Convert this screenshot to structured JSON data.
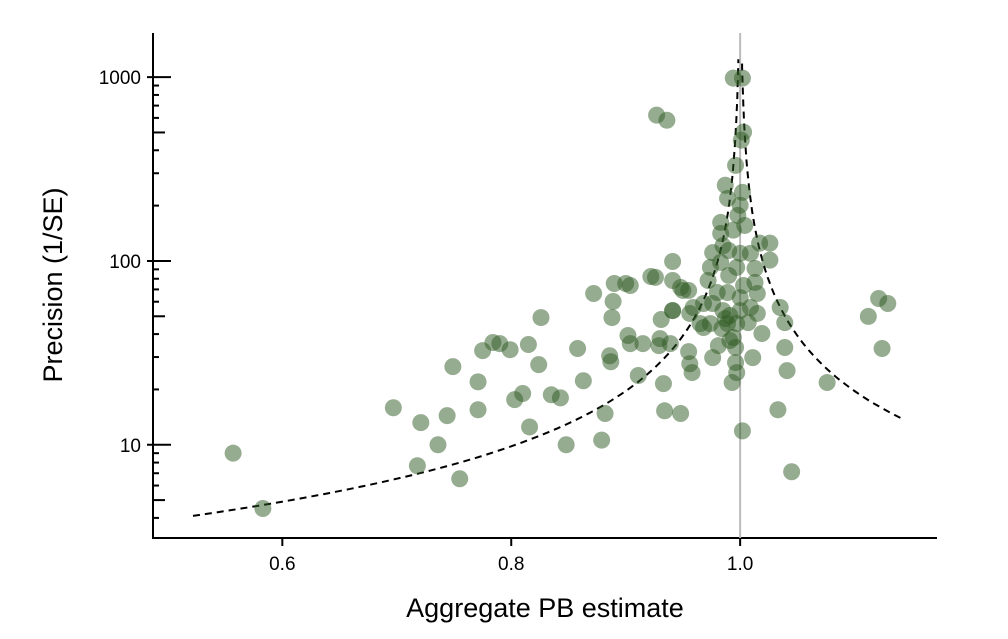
{
  "chart_data": {
    "type": "scatter",
    "title": "",
    "xlabel": "Aggregate PB estimate",
    "ylabel": "Precision (1/SE)",
    "xlim": [
      0.487,
      1.172
    ],
    "ylim": [
      3.11,
      1738
    ],
    "yscale": "log",
    "grid": false,
    "x_ticks": [
      {
        "value": 0.6,
        "label": "0.6"
      },
      {
        "value": 0.8,
        "label": "0.8"
      },
      {
        "value": 1.0,
        "label": "1.0"
      }
    ],
    "y_ticks": [
      {
        "value": 10,
        "label": "10"
      },
      {
        "value": 100,
        "label": "100"
      },
      {
        "value": 1000,
        "label": "1000"
      }
    ],
    "reference_line_x": 1.0,
    "funnel": {
      "center": 1.0,
      "z": 1.96,
      "left_precision_range": [
        4.1,
        1250
      ],
      "right_precision_range": [
        14,
        1250
      ],
      "style": "dashed"
    },
    "colors": {
      "points": "#2d5a22",
      "reference": "#bbbbbb",
      "funnel": "#000000"
    },
    "points": [
      [
        0.557,
        9.0
      ],
      [
        0.583,
        4.5
      ],
      [
        0.697,
        15.9
      ],
      [
        0.721,
        13.2
      ],
      [
        0.736,
        10.0
      ],
      [
        0.744,
        14.4
      ],
      [
        0.718,
        7.69
      ],
      [
        0.755,
        6.53
      ],
      [
        0.749,
        26.6
      ],
      [
        0.771,
        22.0
      ],
      [
        0.771,
        15.5
      ],
      [
        0.775,
        32.5
      ],
      [
        0.784,
        36.0
      ],
      [
        0.79,
        35.5
      ],
      [
        0.799,
        32.9
      ],
      [
        0.803,
        17.6
      ],
      [
        0.81,
        19.0
      ],
      [
        0.815,
        35.1
      ],
      [
        0.816,
        12.5
      ],
      [
        0.824,
        27.3
      ],
      [
        0.826,
        49.2
      ],
      [
        0.835,
        18.7
      ],
      [
        0.843,
        18.0
      ],
      [
        0.848,
        10.0
      ],
      [
        0.858,
        33.4
      ],
      [
        0.863,
        22.3
      ],
      [
        0.872,
        66.5
      ],
      [
        0.879,
        10.6
      ],
      [
        0.882,
        14.8
      ],
      [
        0.886,
        30.5
      ],
      [
        0.887,
        28.3
      ],
      [
        0.888,
        49.2
      ],
      [
        0.889,
        60.2
      ],
      [
        0.89,
        75.4
      ],
      [
        0.9,
        75.4
      ],
      [
        0.904,
        73.5
      ],
      [
        0.902,
        39.3
      ],
      [
        0.904,
        35.5
      ],
      [
        0.911,
        23.8
      ],
      [
        0.915,
        35.5
      ],
      [
        0.922,
        82.3
      ],
      [
        0.926,
        81.4
      ],
      [
        0.929,
        34.6
      ],
      [
        0.93,
        37.8
      ],
      [
        0.931,
        48.0
      ],
      [
        0.933,
        21.5
      ],
      [
        0.934,
        15.3
      ],
      [
        0.941,
        99.3
      ],
      [
        0.941,
        53.7
      ],
      [
        0.948,
        14.8
      ],
      [
        0.95,
        69.1
      ],
      [
        0.955,
        32.1
      ],
      [
        0.927,
        621
      ],
      [
        0.936,
        583
      ],
      [
        0.994,
        988
      ],
      [
        1.002,
        988
      ],
      [
        1.003,
        502
      ],
      [
        1.001,
        454
      ],
      [
        0.996,
        331
      ],
      [
        0.989,
        219
      ],
      [
        1.0,
        201
      ],
      [
        1.002,
        236
      ],
      [
        0.983,
        162
      ],
      [
        0.983,
        141
      ],
      [
        0.976,
        111
      ],
      [
        0.985,
        121
      ],
      [
        0.99,
        114
      ],
      [
        1.0,
        110
      ],
      [
        1.009,
        110
      ],
      [
        1.017,
        125
      ],
      [
        1.026,
        125
      ],
      [
        1.026,
        101
      ],
      [
        0.974,
        92.2
      ],
      [
        0.983,
        98.2
      ],
      [
        0.997,
        92.2
      ],
      [
        1.013,
        91.0
      ],
      [
        0.972,
        78.3
      ],
      [
        0.99,
        83.4
      ],
      [
        1.003,
        73.5
      ],
      [
        1.013,
        76.4
      ],
      [
        0.98,
        67.3
      ],
      [
        0.989,
        67.3
      ],
      [
        1.0,
        63.2
      ],
      [
        1.015,
        66.5
      ],
      [
        0.968,
        58.7
      ],
      [
        0.976,
        58.7
      ],
      [
        0.985,
        53.7
      ],
      [
        0.991,
        50.5
      ],
      [
        0.989,
        45.6
      ],
      [
        1.0,
        53.7
      ],
      [
        1.009,
        55.8
      ],
      [
        1.015,
        51.8
      ],
      [
        0.997,
        45.6
      ],
      [
        1.007,
        46.2
      ],
      [
        0.974,
        45.6
      ],
      [
        1.019,
        40.3
      ],
      [
        1.035,
        55.8
      ],
      [
        1.039,
        46.2
      ],
      [
        0.994,
        38.3
      ],
      [
        0.981,
        34.6
      ],
      [
        0.996,
        33.8
      ],
      [
        0.976,
        29.8
      ],
      [
        0.996,
        28.0
      ],
      [
        0.997,
        24.7
      ],
      [
        0.993,
        21.8
      ],
      [
        1.011,
        29.8
      ],
      [
        1.039,
        33.8
      ],
      [
        1.041,
        25.3
      ],
      [
        0.959,
        55.8
      ],
      [
        0.956,
        51.8
      ],
      [
        0.941,
        53.7
      ],
      [
        0.948,
        71.7
      ],
      [
        0.955,
        69.1
      ],
      [
        0.941,
        78.3
      ],
      [
        0.968,
        43.4
      ],
      [
        0.965,
        45.6
      ],
      [
        0.939,
        35.5
      ],
      [
        0.956,
        27.6
      ],
      [
        0.958,
        24.7
      ],
      [
        1.033,
        15.5
      ],
      [
        1.045,
        7.13
      ],
      [
        1.002,
        11.9
      ],
      [
        1.076,
        21.8
      ],
      [
        1.121,
        62.5
      ],
      [
        1.129,
        58.7
      ],
      [
        1.112,
        49.9
      ],
      [
        1.124,
        33.4
      ],
      [
        0.998,
        177
      ],
      [
        1.004,
        156
      ],
      [
        0.994,
        147
      ],
      [
        0.987,
        258
      ],
      [
        0.987,
        48.6
      ],
      [
        0.984,
        42.9
      ],
      [
        0.991,
        36.9
      ]
    ]
  }
}
